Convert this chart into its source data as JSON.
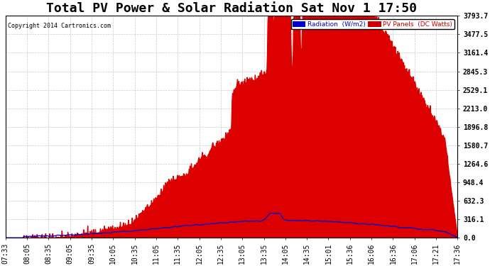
{
  "title": "Total PV Power & Solar Radiation Sat Nov 1 17:50",
  "copyright": "Copyright 2014 Cartronics.com",
  "legend_items": [
    {
      "label": "Radiation  (W/m2)",
      "color": "#0000cc"
    },
    {
      "label": "PV Panels  (DC Watts)",
      "color": "#cc0000"
    }
  ],
  "ylabel_right_values": [
    0.0,
    316.1,
    632.3,
    948.4,
    1264.6,
    1580.7,
    1896.8,
    2213.0,
    2529.1,
    2845.3,
    3161.4,
    3477.5,
    3793.7
  ],
  "ymax": 3793.7,
  "ymin": 0.0,
  "background_color": "#ffffff",
  "plot_background": "#ffffff",
  "grid_color": "#bbbbbb",
  "title_fontsize": 13,
  "axis_label_fontsize": 7,
  "xtick_labels": [
    "07:33",
    "08:05",
    "08:35",
    "09:05",
    "09:35",
    "10:05",
    "10:35",
    "11:05",
    "11:35",
    "12:05",
    "12:35",
    "13:05",
    "13:35",
    "14:05",
    "14:35",
    "15:01",
    "15:36",
    "16:06",
    "16:36",
    "17:06",
    "17:21",
    "17:36"
  ],
  "pv_color": "#dd0000",
  "radiation_color": "#0000cc",
  "radiation_lw": 1.0
}
